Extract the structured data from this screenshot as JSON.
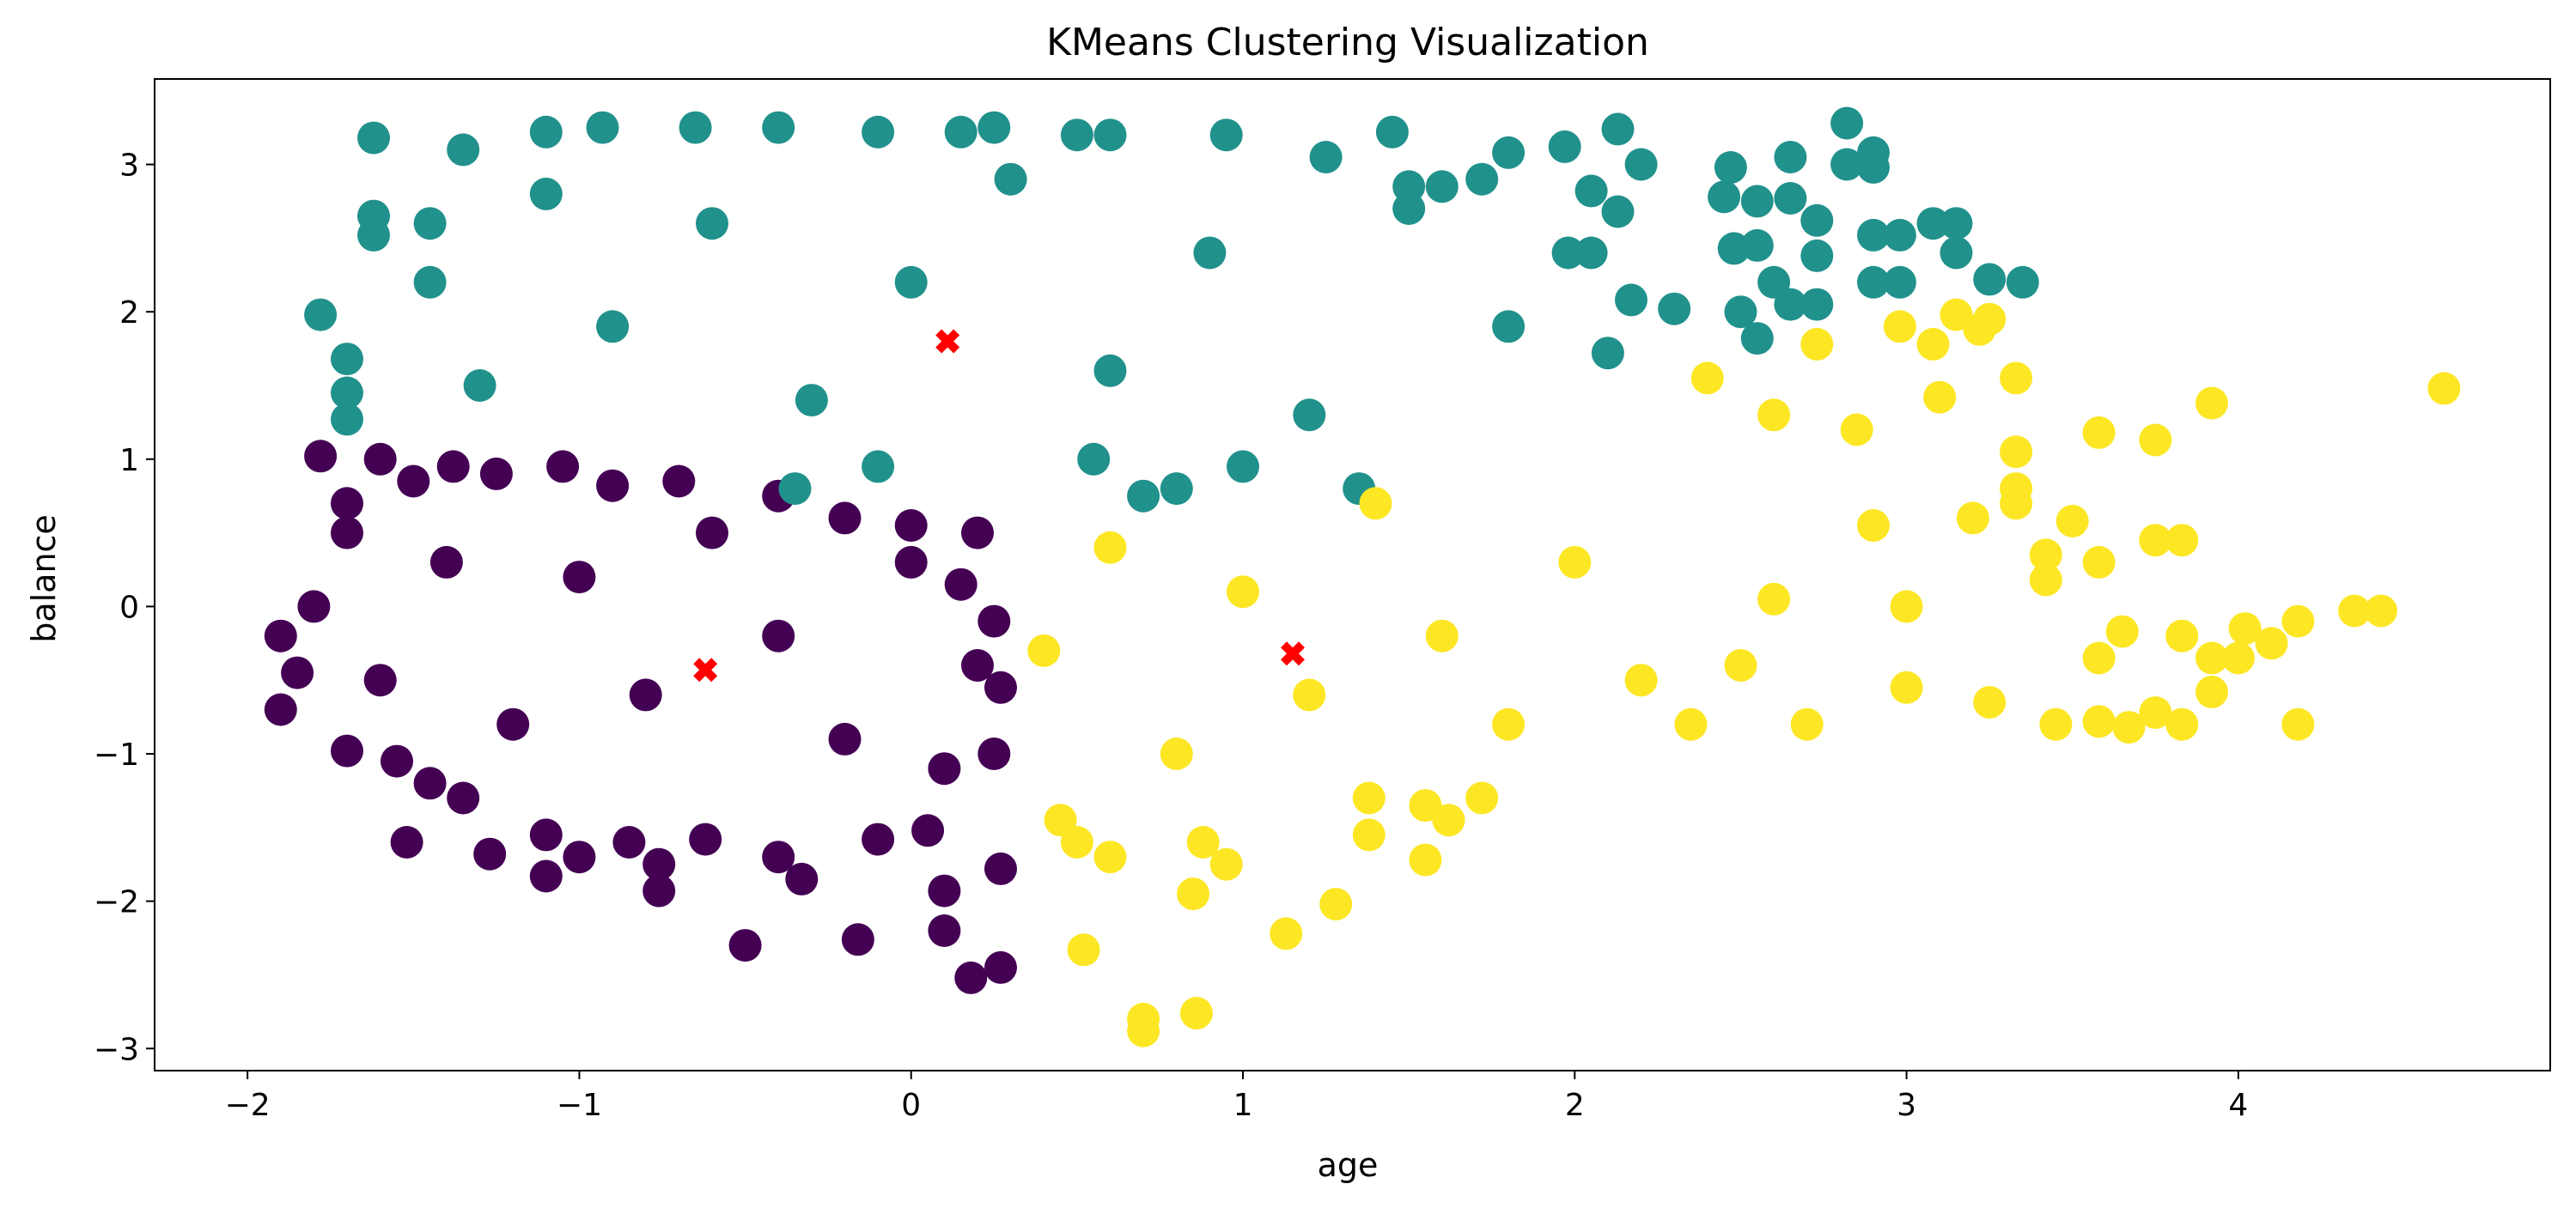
{
  "chart_data": {
    "type": "scatter",
    "title": "KMeans Clustering Visualization",
    "xlabel": "age",
    "ylabel": "balance",
    "xlim": [
      -2.28,
      4.94
    ],
    "ylim": [
      -3.15,
      3.58
    ],
    "xticks": [
      {
        "value": -2,
        "label": "−2"
      },
      {
        "value": -1,
        "label": "−1"
      },
      {
        "value": 0,
        "label": "0"
      },
      {
        "value": 1,
        "label": "1"
      },
      {
        "value": 2,
        "label": "2"
      },
      {
        "value": 3,
        "label": "3"
      },
      {
        "value": 4,
        "label": "4"
      }
    ],
    "yticks": [
      {
        "value": -3,
        "label": "−3"
      },
      {
        "value": -2,
        "label": "−2"
      },
      {
        "value": -1,
        "label": "−1"
      },
      {
        "value": 0,
        "label": "0"
      },
      {
        "value": 1,
        "label": "1"
      },
      {
        "value": 2,
        "label": "2"
      },
      {
        "value": 3,
        "label": "3"
      }
    ],
    "grid": false,
    "legend": "none",
    "clusters": [
      {
        "cluster": 0,
        "color": "#440154",
        "points": [
          [
            -1.6,
            -0.5
          ],
          [
            -1.4,
            0.3
          ],
          [
            -1.2,
            -0.8
          ],
          [
            -1.0,
            0.2
          ],
          [
            -0.8,
            -0.6
          ],
          [
            -0.6,
            0.5
          ],
          [
            -0.4,
            -0.2
          ],
          [
            -0.2,
            -0.9
          ],
          [
            0.0,
            0.3
          ],
          [
            0.2,
            -0.4
          ],
          [
            -1.9,
            -0.2
          ],
          [
            -1.85,
            -0.45
          ],
          [
            -1.9,
            -0.7
          ],
          [
            -1.8,
            0.0
          ],
          [
            -1.78,
            1.02
          ],
          [
            -1.7,
            0.7
          ],
          [
            -1.7,
            0.5
          ],
          [
            -1.7,
            -0.98
          ],
          [
            -1.6,
            1.0
          ],
          [
            -1.55,
            -1.05
          ],
          [
            -1.52,
            -1.6
          ],
          [
            -1.5,
            0.85
          ],
          [
            -1.45,
            -1.2
          ],
          [
            -1.38,
            0.95
          ],
          [
            -1.35,
            -1.3
          ],
          [
            -1.27,
            -1.68
          ],
          [
            -1.25,
            0.9
          ],
          [
            -1.1,
            -1.83
          ],
          [
            -1.1,
            -1.55
          ],
          [
            -1.05,
            0.95
          ],
          [
            -1.0,
            -1.7
          ],
          [
            -0.9,
            0.82
          ],
          [
            -0.85,
            -1.6
          ],
          [
            -0.76,
            -1.93
          ],
          [
            -0.76,
            -1.75
          ],
          [
            -0.7,
            0.85
          ],
          [
            -0.62,
            -1.58
          ],
          [
            -0.5,
            -2.3
          ],
          [
            -0.4,
            0.75
          ],
          [
            -0.4,
            -1.7
          ],
          [
            -0.33,
            -1.85
          ],
          [
            -0.2,
            0.6
          ],
          [
            -0.16,
            -2.26
          ],
          [
            -0.1,
            -1.58
          ],
          [
            0.0,
            0.55
          ],
          [
            0.05,
            -1.52
          ],
          [
            0.1,
            -2.2
          ],
          [
            0.1,
            -1.93
          ],
          [
            0.18,
            -2.52
          ],
          [
            0.2,
            0.5
          ],
          [
            0.25,
            -1.0
          ],
          [
            0.27,
            -2.45
          ],
          [
            0.27,
            -1.78
          ],
          [
            0.27,
            -0.55
          ],
          [
            0.25,
            -0.1
          ],
          [
            0.15,
            0.15
          ],
          [
            0.1,
            -1.1
          ]
        ]
      },
      {
        "cluster": 1,
        "color": "#21918c",
        "points": [
          [
            -1.3,
            1.5
          ],
          [
            -1.1,
            2.8
          ],
          [
            -0.9,
            1.9
          ],
          [
            -0.6,
            2.6
          ],
          [
            -0.3,
            1.4
          ],
          [
            0.0,
            2.2
          ],
          [
            0.3,
            2.9
          ],
          [
            0.6,
            1.6
          ],
          [
            0.9,
            2.4
          ],
          [
            1.2,
            1.3
          ],
          [
            1.5,
            2.7
          ],
          [
            1.8,
            1.9
          ],
          [
            -1.78,
            1.98
          ],
          [
            -1.62,
            3.18
          ],
          [
            -1.62,
            2.65
          ],
          [
            -1.62,
            2.52
          ],
          [
            -1.7,
            1.68
          ],
          [
            -1.7,
            1.45
          ],
          [
            -1.7,
            1.27
          ],
          [
            -1.45,
            2.6
          ],
          [
            -1.45,
            2.2
          ],
          [
            -1.35,
            3.1
          ],
          [
            -1.1,
            3.22
          ],
          [
            -0.93,
            3.25
          ],
          [
            -0.65,
            3.25
          ],
          [
            -0.4,
            3.25
          ],
          [
            -0.1,
            3.22
          ],
          [
            0.15,
            3.22
          ],
          [
            0.25,
            3.25
          ],
          [
            0.5,
            3.2
          ],
          [
            0.6,
            3.2
          ],
          [
            0.95,
            3.2
          ],
          [
            1.25,
            3.05
          ],
          [
            1.45,
            3.22
          ],
          [
            1.5,
            2.85
          ],
          [
            1.6,
            2.85
          ],
          [
            1.72,
            2.9
          ],
          [
            1.8,
            3.08
          ],
          [
            1.97,
            3.12
          ],
          [
            1.98,
            2.4
          ],
          [
            2.05,
            2.4
          ],
          [
            2.05,
            2.82
          ],
          [
            2.13,
            3.24
          ],
          [
            2.13,
            2.68
          ],
          [
            2.2,
            3.0
          ],
          [
            2.17,
            2.08
          ],
          [
            2.3,
            2.02
          ],
          [
            2.1,
            1.72
          ],
          [
            2.45,
            2.78
          ],
          [
            2.47,
            2.98
          ],
          [
            2.48,
            2.43
          ],
          [
            2.55,
            2.45
          ],
          [
            2.55,
            2.75
          ],
          [
            2.6,
            2.2
          ],
          [
            2.5,
            2.0
          ],
          [
            2.55,
            1.82
          ],
          [
            2.65,
            2.77
          ],
          [
            2.65,
            3.05
          ],
          [
            2.65,
            2.05
          ],
          [
            2.73,
            2.62
          ],
          [
            2.73,
            2.38
          ],
          [
            2.73,
            2.05
          ],
          [
            2.82,
            3.28
          ],
          [
            2.82,
            3.0
          ],
          [
            2.9,
            3.08
          ],
          [
            2.9,
            2.98
          ],
          [
            2.9,
            2.52
          ],
          [
            2.9,
            2.2
          ],
          [
            2.98,
            2.52
          ],
          [
            2.98,
            2.2
          ],
          [
            3.08,
            2.6
          ],
          [
            3.15,
            2.6
          ],
          [
            3.15,
            2.4
          ],
          [
            3.25,
            2.22
          ],
          [
            3.35,
            2.2
          ],
          [
            0.55,
            1.0
          ],
          [
            0.8,
            0.8
          ],
          [
            1.0,
            0.95
          ],
          [
            1.35,
            0.8
          ],
          [
            0.7,
            0.75
          ],
          [
            -0.35,
            0.8
          ],
          [
            -0.1,
            0.95
          ]
        ]
      },
      {
        "cluster": 2,
        "color": "#fde725",
        "points": [
          [
            0.4,
            -0.3
          ],
          [
            0.6,
            0.4
          ],
          [
            0.8,
            -1.0
          ],
          [
            1.0,
            0.1
          ],
          [
            1.2,
            -0.6
          ],
          [
            1.4,
            0.7
          ],
          [
            1.6,
            -0.2
          ],
          [
            1.8,
            -0.8
          ],
          [
            2.0,
            0.3
          ],
          [
            2.2,
            -0.5
          ],
          [
            0.45,
            -1.45
          ],
          [
            0.5,
            -1.6
          ],
          [
            0.6,
            -1.7
          ],
          [
            0.52,
            -2.33
          ],
          [
            0.7,
            -2.8
          ],
          [
            0.7,
            -2.88
          ],
          [
            0.86,
            -2.76
          ],
          [
            0.85,
            -1.95
          ],
          [
            0.88,
            -1.6
          ],
          [
            0.95,
            -1.75
          ],
          [
            1.13,
            -2.22
          ],
          [
            1.28,
            -2.02
          ],
          [
            1.38,
            -1.55
          ],
          [
            1.38,
            -1.3
          ],
          [
            1.55,
            -1.72
          ],
          [
            1.55,
            -1.35
          ],
          [
            1.62,
            -1.45
          ],
          [
            1.72,
            -1.3
          ],
          [
            2.73,
            1.78
          ],
          [
            2.98,
            1.9
          ],
          [
            3.08,
            1.78
          ],
          [
            3.15,
            1.98
          ],
          [
            3.22,
            1.88
          ],
          [
            3.25,
            1.95
          ],
          [
            3.33,
            1.55
          ],
          [
            3.33,
            1.05
          ],
          [
            3.33,
            0.8
          ],
          [
            3.33,
            0.7
          ],
          [
            3.42,
            0.35
          ],
          [
            3.42,
            0.18
          ],
          [
            3.5,
            0.58
          ],
          [
            3.58,
            1.18
          ],
          [
            3.58,
            0.3
          ],
          [
            3.58,
            -0.35
          ],
          [
            3.58,
            -0.78
          ],
          [
            3.65,
            -0.17
          ],
          [
            3.67,
            -0.82
          ],
          [
            3.75,
            1.13
          ],
          [
            3.75,
            0.45
          ],
          [
            3.75,
            -0.72
          ],
          [
            3.83,
            0.45
          ],
          [
            3.83,
            -0.2
          ],
          [
            3.83,
            -0.8
          ],
          [
            3.92,
            1.38
          ],
          [
            3.92,
            -0.35
          ],
          [
            3.92,
            -0.58
          ],
          [
            4.0,
            -0.35
          ],
          [
            4.02,
            -0.15
          ],
          [
            4.1,
            -0.25
          ],
          [
            4.18,
            -0.1
          ],
          [
            4.18,
            -0.8
          ],
          [
            4.35,
            -0.03
          ],
          [
            4.43,
            -0.03
          ],
          [
            4.62,
            1.48
          ],
          [
            2.4,
            1.55
          ],
          [
            2.6,
            1.3
          ],
          [
            2.85,
            1.2
          ],
          [
            3.1,
            1.42
          ],
          [
            2.35,
            -0.8
          ],
          [
            2.5,
            -0.4
          ],
          [
            2.7,
            -0.8
          ],
          [
            3.0,
            -0.55
          ],
          [
            3.25,
            -0.65
          ],
          [
            3.45,
            -0.8
          ],
          [
            2.9,
            0.55
          ],
          [
            3.2,
            0.6
          ],
          [
            2.6,
            0.05
          ],
          [
            3.0,
            0.0
          ]
        ]
      }
    ],
    "centroids": {
      "color": "#ff0000",
      "marker": "X",
      "points": [
        [
          -0.62,
          -0.43
        ],
        [
          0.11,
          1.8
        ],
        [
          1.15,
          -0.32
        ]
      ]
    }
  }
}
